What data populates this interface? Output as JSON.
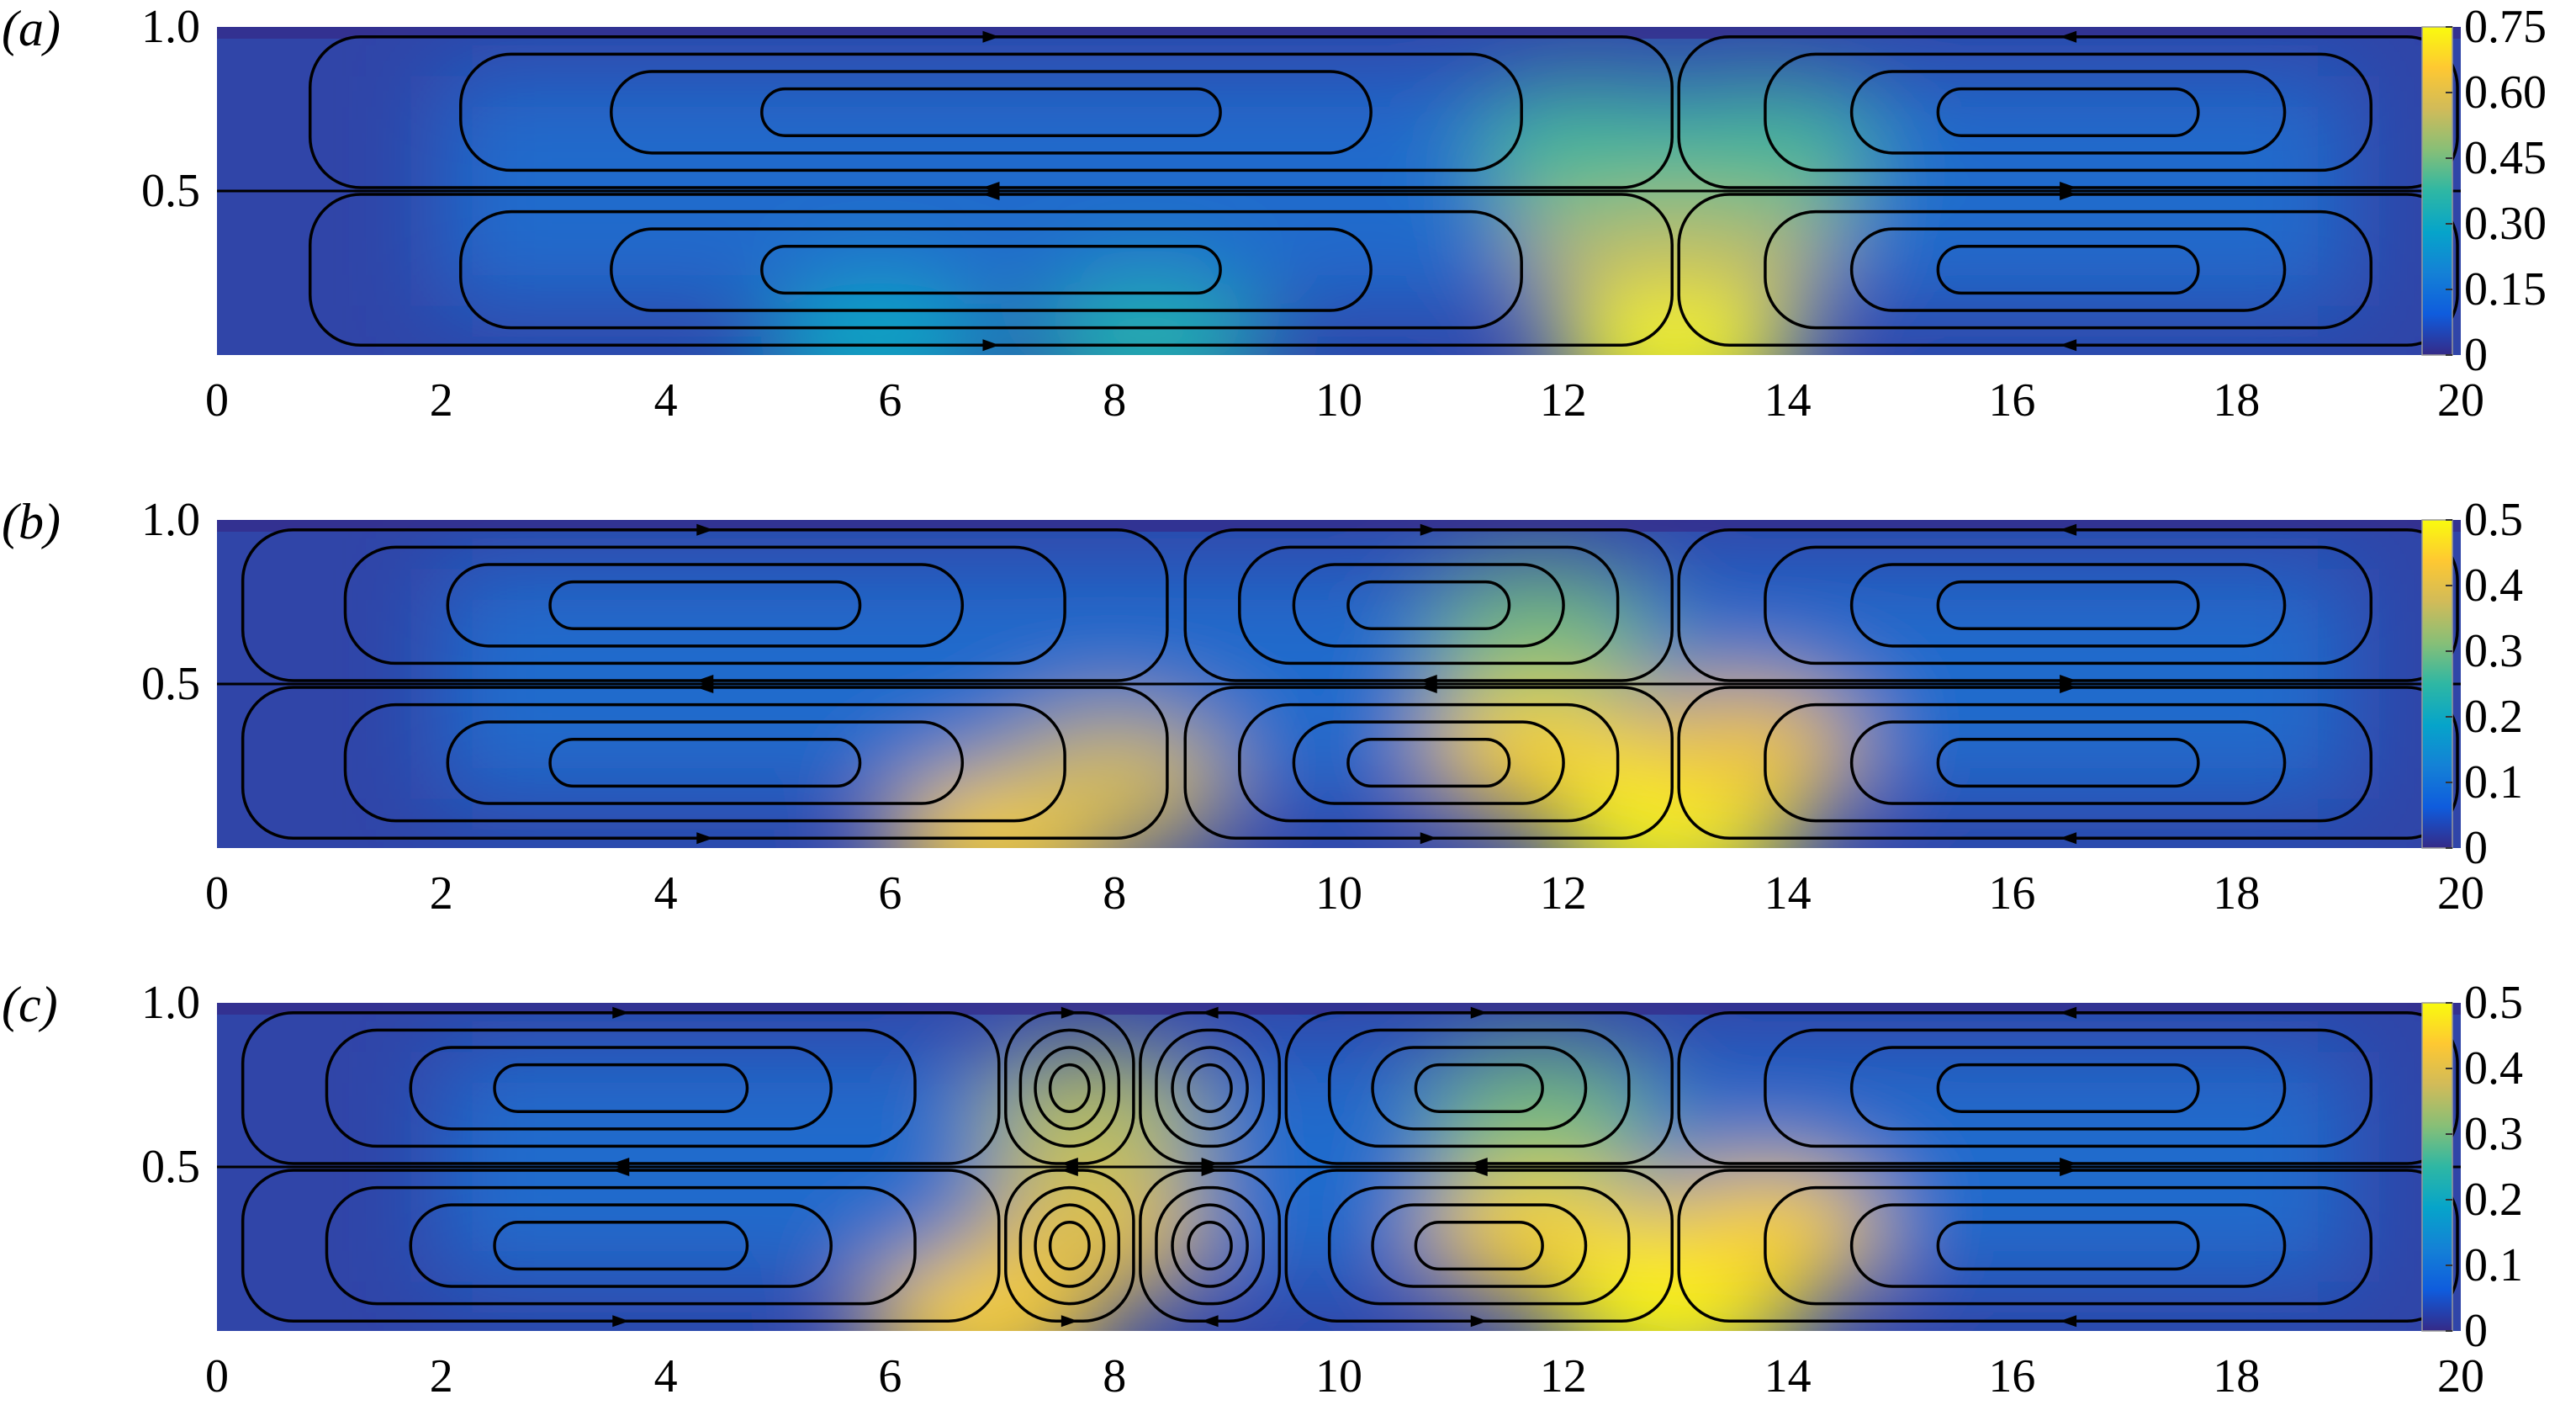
{
  "figure": {
    "panels": [
      {
        "label": "(a)"
      },
      {
        "label": "(b)"
      },
      {
        "label": "(c)"
      }
    ]
  },
  "chart_data": [
    {
      "type": "heatmap",
      "panel_label": "(a)",
      "xlim": [
        0,
        20
      ],
      "ylim": [
        0,
        1
      ],
      "xticks": [
        0,
        2,
        4,
        6,
        8,
        10,
        12,
        14,
        16,
        18,
        20
      ],
      "xtick_labels": [
        "0",
        "2",
        "4",
        "6",
        "8",
        "10",
        "12",
        "14",
        "16",
        "18",
        "20"
      ],
      "yticks": [
        0.5,
        1.0
      ],
      "ytick_labels": [
        "0.5",
        "1.0"
      ],
      "colorbar": {
        "ticks": [
          0,
          0.15,
          0.3,
          0.45,
          0.6,
          0.75
        ],
        "tick_labels": [
          "0",
          "0.15",
          "0.30",
          "0.45",
          "0.60",
          "0.75"
        ],
        "range": [
          0,
          0.75
        ],
        "colormap": "parula"
      },
      "hotspots": [
        {
          "x": 5.9,
          "y": 0.02,
          "value": 0.3
        },
        {
          "x": 8.3,
          "y": 0.03,
          "value": 0.35
        },
        {
          "x": 13.0,
          "y": 0.02,
          "value": 0.75
        },
        {
          "x": 12.6,
          "y": 0.35,
          "value": 0.55
        },
        {
          "x": 13.4,
          "y": 0.35,
          "value": 0.55
        },
        {
          "x": 12.2,
          "y": 0.62,
          "value": 0.4
        },
        {
          "x": 13.8,
          "y": 0.62,
          "value": 0.4
        }
      ],
      "streamline_cells": [
        {
          "x": [
            0.8,
            13.0
          ],
          "y": [
            0.5,
            0.98
          ],
          "direction": "cw"
        },
        {
          "x": [
            0.8,
            13.0
          ],
          "y": [
            0.02,
            0.5
          ],
          "direction": "ccw"
        },
        {
          "x": [
            13.0,
            20.0
          ],
          "y": [
            0.5,
            0.98
          ],
          "direction": "ccw"
        },
        {
          "x": [
            13.0,
            20.0
          ],
          "y": [
            0.02,
            0.5
          ],
          "direction": "cw"
        }
      ]
    },
    {
      "type": "heatmap",
      "panel_label": "(b)",
      "xlim": [
        0,
        20
      ],
      "ylim": [
        0,
        1
      ],
      "xticks": [
        0,
        2,
        4,
        6,
        8,
        10,
        12,
        14,
        16,
        18,
        20
      ],
      "xtick_labels": [
        "0",
        "2",
        "4",
        "6",
        "8",
        "10",
        "12",
        "14",
        "16",
        "18",
        "20"
      ],
      "yticks": [
        0.5,
        1.0
      ],
      "ytick_labels": [
        "0.5",
        "1.0"
      ],
      "colorbar": {
        "ticks": [
          0,
          0.1,
          0.2,
          0.3,
          0.4,
          0.5
        ],
        "tick_labels": [
          "0",
          "0.1",
          "0.2",
          "0.3",
          "0.4",
          "0.5"
        ],
        "range": [
          0,
          0.5
        ],
        "colormap": "parula"
      },
      "hotspots": [
        {
          "x": 7.0,
          "y": 0.03,
          "value": 0.45
        },
        {
          "x": 8.0,
          "y": 0.2,
          "value": 0.38
        },
        {
          "x": 11.8,
          "y": 0.3,
          "value": 0.45
        },
        {
          "x": 13.0,
          "y": 0.05,
          "value": 0.5
        },
        {
          "x": 13.6,
          "y": 0.3,
          "value": 0.42
        },
        {
          "x": 11.8,
          "y": 0.66,
          "value": 0.3
        }
      ],
      "streamline_cells": [
        {
          "x": [
            0.2,
            8.5
          ],
          "y": [
            0.5,
            0.98
          ],
          "direction": "cw"
        },
        {
          "x": [
            0.2,
            8.5
          ],
          "y": [
            0.02,
            0.5
          ],
          "direction": "ccw"
        },
        {
          "x": [
            8.6,
            13.0
          ],
          "y": [
            0.5,
            0.98
          ],
          "direction": "cw"
        },
        {
          "x": [
            8.6,
            13.0
          ],
          "y": [
            0.02,
            0.5
          ],
          "direction": "ccw"
        },
        {
          "x": [
            13.0,
            20.0
          ],
          "y": [
            0.5,
            0.98
          ],
          "direction": "ccw"
        },
        {
          "x": [
            13.0,
            20.0
          ],
          "y": [
            0.02,
            0.5
          ],
          "direction": "cw"
        }
      ]
    },
    {
      "type": "heatmap",
      "panel_label": "(c)",
      "xlim": [
        0,
        20
      ],
      "ylim": [
        0,
        1
      ],
      "xticks": [
        0,
        2,
        4,
        6,
        8,
        10,
        12,
        14,
        16,
        18,
        20
      ],
      "xtick_labels": [
        "0",
        "2",
        "4",
        "6",
        "8",
        "10",
        "12",
        "14",
        "16",
        "18",
        "20"
      ],
      "yticks": [
        0.5,
        1.0
      ],
      "ytick_labels": [
        "0.5",
        "1.0"
      ],
      "colorbar": {
        "ticks": [
          0,
          0.1,
          0.2,
          0.3,
          0.4,
          0.5
        ],
        "tick_labels": [
          "0",
          "0.1",
          "0.2",
          "0.3",
          "0.4",
          "0.5"
        ],
        "range": [
          0,
          0.5
        ],
        "colormap": "parula"
      },
      "hotspots": [
        {
          "x": 6.8,
          "y": 0.03,
          "value": 0.45
        },
        {
          "x": 7.8,
          "y": 0.3,
          "value": 0.4
        },
        {
          "x": 7.8,
          "y": 0.65,
          "value": 0.35
        },
        {
          "x": 11.8,
          "y": 0.3,
          "value": 0.45
        },
        {
          "x": 13.0,
          "y": 0.05,
          "value": 0.5
        },
        {
          "x": 13.8,
          "y": 0.3,
          "value": 0.45
        },
        {
          "x": 11.8,
          "y": 0.66,
          "value": 0.3
        }
      ],
      "streamline_cells": [
        {
          "x": [
            0.2,
            7.0
          ],
          "y": [
            0.5,
            0.98
          ],
          "direction": "cw"
        },
        {
          "x": [
            0.2,
            7.0
          ],
          "y": [
            0.02,
            0.5
          ],
          "direction": "ccw"
        },
        {
          "x": [
            7.0,
            8.2
          ],
          "y": [
            0.5,
            0.98
          ],
          "direction": "cw"
        },
        {
          "x": [
            7.0,
            8.2
          ],
          "y": [
            0.02,
            0.5
          ],
          "direction": "ccw"
        },
        {
          "x": [
            8.2,
            9.5
          ],
          "y": [
            0.5,
            0.98
          ],
          "direction": "ccw"
        },
        {
          "x": [
            8.2,
            9.5
          ],
          "y": [
            0.02,
            0.5
          ],
          "direction": "cw"
        },
        {
          "x": [
            9.5,
            13.0
          ],
          "y": [
            0.5,
            0.98
          ],
          "direction": "cw"
        },
        {
          "x": [
            9.5,
            13.0
          ],
          "y": [
            0.02,
            0.5
          ],
          "direction": "ccw"
        },
        {
          "x": [
            13.0,
            20.0
          ],
          "y": [
            0.5,
            0.98
          ],
          "direction": "ccw"
        },
        {
          "x": [
            13.0,
            20.0
          ],
          "y": [
            0.02,
            0.5
          ],
          "direction": "cw"
        }
      ]
    }
  ]
}
